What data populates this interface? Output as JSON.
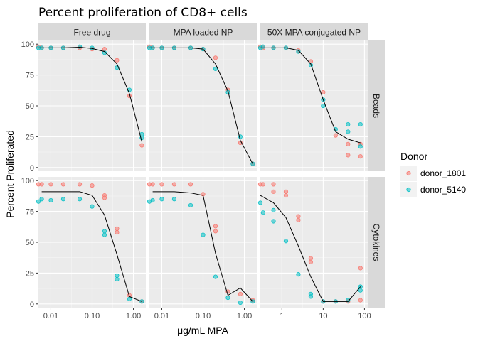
{
  "chart_data": {
    "type": "scatter",
    "title": "Percent proliferation of CD8+ cells",
    "xlabel": "μg/mL MPA",
    "ylabel": "Percent Proliferated",
    "x_scale": "log10",
    "ylim": [
      -3,
      103
    ],
    "yticks": [
      0,
      25,
      50,
      75,
      100
    ],
    "grid": true,
    "columns": [
      "Free drug",
      "MPA loaded NP",
      "50X MPA conjugated NP"
    ],
    "rows": [
      "Beads",
      "Cytokines"
    ],
    "x_axes": [
      {
        "range": [
          0.005,
          2
        ],
        "ticks": [
          0.01,
          0.1,
          1
        ],
        "tick_labels": [
          "0.01",
          "0.10",
          "1.00"
        ]
      },
      {
        "range": [
          0.005,
          2
        ],
        "ticks": [
          0.01,
          0.1,
          1
        ],
        "tick_labels": [
          "0.01",
          "0.10",
          "1.00"
        ]
      },
      {
        "range": [
          0.3,
          120
        ],
        "ticks": [
          1,
          10,
          100
        ],
        "tick_labels": [
          "1",
          "10",
          "100"
        ]
      }
    ],
    "legend": {
      "title": "Donor",
      "position": "right",
      "entries": [
        {
          "name": "donor_1801",
          "color": "#F8766D"
        },
        {
          "name": "donor_5140",
          "color": "#00BFC4"
        }
      ]
    },
    "line_color": "#000000",
    "panels": [
      {
        "row": "Beads",
        "col": "Free drug",
        "xaxis": 0,
        "points": {
          "donor_1801": [
            [
              0.005,
              98
            ],
            [
              0.006,
              97
            ],
            [
              0.01,
              97
            ],
            [
              0.02,
              97
            ],
            [
              0.05,
              97
            ],
            [
              0.1,
              96
            ],
            [
              0.2,
              96
            ],
            [
              0.4,
              87
            ],
            [
              0.8,
              58
            ],
            [
              1.6,
              18
            ]
          ],
          "donor_5140": [
            [
              0.005,
              97
            ],
            [
              0.006,
              97
            ],
            [
              0.01,
              97
            ],
            [
              0.02,
              97
            ],
            [
              0.05,
              98
            ],
            [
              0.1,
              97
            ],
            [
              0.2,
              93
            ],
            [
              0.4,
              81
            ],
            [
              0.8,
              63
            ],
            [
              1.6,
              27
            ],
            [
              1.6,
              24
            ]
          ]
        },
        "line": [
          [
            0.005,
            97
          ],
          [
            0.006,
            97
          ],
          [
            0.01,
            97
          ],
          [
            0.02,
            97
          ],
          [
            0.05,
            97.5
          ],
          [
            0.1,
            96.5
          ],
          [
            0.2,
            94
          ],
          [
            0.4,
            84
          ],
          [
            0.8,
            60
          ],
          [
            1.6,
            21
          ]
        ]
      },
      {
        "row": "Beads",
        "col": "MPA loaded NP",
        "xaxis": 1,
        "points": {
          "donor_1801": [
            [
              0.005,
              98
            ],
            [
              0.006,
              97
            ],
            [
              0.01,
              97
            ],
            [
              0.02,
              97
            ],
            [
              0.05,
              97
            ],
            [
              0.1,
              96
            ],
            [
              0.2,
              89
            ],
            [
              0.4,
              63
            ],
            [
              0.8,
              20
            ],
            [
              1.6,
              3
            ]
          ],
          "donor_5140": [
            [
              0.005,
              97
            ],
            [
              0.006,
              97
            ],
            [
              0.01,
              97
            ],
            [
              0.02,
              97
            ],
            [
              0.05,
              97
            ],
            [
              0.1,
              96
            ],
            [
              0.2,
              80
            ],
            [
              0.4,
              61
            ],
            [
              0.8,
              25
            ],
            [
              1.6,
              3
            ]
          ]
        },
        "line": [
          [
            0.005,
            97
          ],
          [
            0.006,
            97
          ],
          [
            0.01,
            97
          ],
          [
            0.02,
            97
          ],
          [
            0.05,
            97
          ],
          [
            0.1,
            96
          ],
          [
            0.2,
            84
          ],
          [
            0.4,
            62
          ],
          [
            0.8,
            22
          ],
          [
            1.6,
            3
          ]
        ]
      },
      {
        "row": "Beads",
        "col": "50X MPA conjugated NP",
        "xaxis": 2,
        "points": {
          "donor_1801": [
            [
              0.3,
              98
            ],
            [
              0.35,
              97
            ],
            [
              0.625,
              97
            ],
            [
              1.25,
              97
            ],
            [
              2.5,
              95
            ],
            [
              5,
              86
            ],
            [
              10,
              61
            ],
            [
              20,
              26
            ],
            [
              40,
              19
            ],
            [
              40,
              10
            ],
            [
              80,
              19
            ],
            [
              80,
              9
            ]
          ],
          "donor_5140": [
            [
              0.3,
              97
            ],
            [
              0.35,
              98
            ],
            [
              0.625,
              97
            ],
            [
              1.25,
              97
            ],
            [
              2.5,
              94
            ],
            [
              5,
              83
            ],
            [
              10,
              50
            ],
            [
              10,
              55
            ],
            [
              20,
              31
            ],
            [
              40,
              29
            ],
            [
              40,
              35
            ],
            [
              80,
              35
            ],
            [
              80,
              17
            ]
          ]
        },
        "line": [
          [
            0.3,
            97
          ],
          [
            0.625,
            97
          ],
          [
            1.25,
            97
          ],
          [
            2.5,
            95
          ],
          [
            5,
            84
          ],
          [
            10,
            55
          ],
          [
            20,
            29
          ],
          [
            40,
            23
          ],
          [
            80,
            20
          ]
        ]
      },
      {
        "row": "Cytokines",
        "col": "Free drug",
        "xaxis": 0,
        "points": {
          "donor_1801": [
            [
              0.005,
              97
            ],
            [
              0.006,
              97
            ],
            [
              0.01,
              97
            ],
            [
              0.02,
              97
            ],
            [
              0.05,
              97
            ],
            [
              0.1,
              96
            ],
            [
              0.2,
              86
            ],
            [
              0.2,
              88
            ],
            [
              0.4,
              61
            ],
            [
              0.4,
              58
            ],
            [
              0.8,
              7
            ],
            [
              1.6,
              2
            ]
          ],
          "donor_5140": [
            [
              0.005,
              83
            ],
            [
              0.006,
              85
            ],
            [
              0.01,
              84
            ],
            [
              0.02,
              85
            ],
            [
              0.05,
              85
            ],
            [
              0.1,
              79
            ],
            [
              0.2,
              56
            ],
            [
              0.2,
              59
            ],
            [
              0.4,
              23
            ],
            [
              0.4,
              20
            ],
            [
              0.8,
              4
            ],
            [
              1.6,
              2
            ]
          ]
        },
        "line": [
          [
            0.006,
            91
          ],
          [
            0.01,
            91
          ],
          [
            0.02,
            91
          ],
          [
            0.05,
            91
          ],
          [
            0.1,
            88
          ],
          [
            0.2,
            72
          ],
          [
            0.4,
            40
          ],
          [
            0.8,
            6
          ],
          [
            1.6,
            2
          ]
        ]
      },
      {
        "row": "Cytokines",
        "col": "MPA loaded NP",
        "xaxis": 1,
        "points": {
          "donor_1801": [
            [
              0.005,
              97
            ],
            [
              0.006,
              97
            ],
            [
              0.01,
              97
            ],
            [
              0.02,
              97
            ],
            [
              0.05,
              97
            ],
            [
              0.1,
              89
            ],
            [
              0.2,
              63
            ],
            [
              0.2,
              59
            ],
            [
              0.4,
              10
            ],
            [
              0.8,
              8
            ],
            [
              1.6,
              3
            ]
          ],
          "donor_5140": [
            [
              0.005,
              83
            ],
            [
              0.006,
              84
            ],
            [
              0.01,
              85
            ],
            [
              0.02,
              85
            ],
            [
              0.05,
              80
            ],
            [
              0.1,
              56
            ],
            [
              0.2,
              22
            ],
            [
              0.4,
              5
            ],
            [
              0.8,
              1
            ],
            [
              1.6,
              2
            ]
          ]
        },
        "line": [
          [
            0.006,
            91
          ],
          [
            0.01,
            91
          ],
          [
            0.02,
            91
          ],
          [
            0.05,
            90
          ],
          [
            0.1,
            88
          ],
          [
            0.2,
            41
          ],
          [
            0.4,
            7
          ],
          [
            0.8,
            13
          ],
          [
            1.6,
            2
          ]
        ]
      },
      {
        "row": "Cytokines",
        "col": "50X MPA conjugated NP",
        "xaxis": 2,
        "points": {
          "donor_1801": [
            [
              0.3,
              97
            ],
            [
              0.35,
              97
            ],
            [
              0.625,
              97
            ],
            [
              0.625,
              91
            ],
            [
              1.25,
              91
            ],
            [
              1.25,
              88
            ],
            [
              2.5,
              71
            ],
            [
              2.5,
              68
            ],
            [
              5,
              37
            ],
            [
              5,
              34
            ],
            [
              10,
              2
            ],
            [
              20,
              2
            ],
            [
              40,
              2
            ],
            [
              80,
              29
            ],
            [
              80,
              3
            ]
          ],
          "donor_5140": [
            [
              0.3,
              82
            ],
            [
              0.35,
              74
            ],
            [
              0.625,
              76
            ],
            [
              0.625,
              67
            ],
            [
              1.25,
              51
            ],
            [
              2.5,
              24
            ],
            [
              5,
              8
            ],
            [
              5,
              6
            ],
            [
              10,
              2
            ],
            [
              20,
              2
            ],
            [
              40,
              3
            ],
            [
              80,
              14
            ],
            [
              80,
              11
            ]
          ]
        },
        "line": [
          [
            0.3,
            88
          ],
          [
            0.625,
            82
          ],
          [
            1.25,
            70
          ],
          [
            2.5,
            47
          ],
          [
            5,
            22
          ],
          [
            10,
            2
          ],
          [
            20,
            2
          ],
          [
            40,
            2
          ],
          [
            80,
            14
          ]
        ]
      }
    ]
  }
}
